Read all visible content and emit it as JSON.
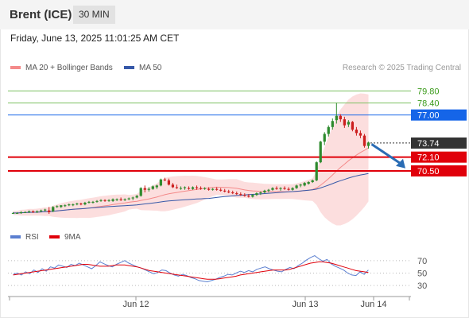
{
  "header": {
    "title": "Brent (ICE)",
    "timeframe": "30 MIN"
  },
  "datetime": "Friday, June 13, 2025 11:01:25 AM CET",
  "copyright": "Research © 2025 Trading Central",
  "colors": {
    "bb": "#f48a8a",
    "ma50": "#3658a8",
    "support": "#e0000a",
    "resistance_green": "#7cc061",
    "pivot": "#1565e8",
    "last": "#333333",
    "rsi": "#5b7fd0",
    "rsi_ma": "#e0000a",
    "candle_up": "#2e8b2e",
    "candle_down": "#cc1f1f",
    "arrow": "#2a6cb4"
  },
  "chart_data": [
    {
      "type": "candlestick",
      "legend": [
        "MA 20 + Bollinger Bands",
        "MA 50"
      ],
      "x_ticks": [
        "Jun 12",
        "Jun 13",
        "Jun 14"
      ],
      "ylim": [
        64.3,
        81.5
      ],
      "levels": [
        {
          "value": 79.8,
          "label": "79.80",
          "kind": "resistance"
        },
        {
          "value": 78.4,
          "label": "78.40",
          "kind": "resistance"
        },
        {
          "value": 77.0,
          "label": "77.00",
          "kind": "pivot"
        },
        {
          "value": 73.74,
          "label": "73.74",
          "kind": "last"
        },
        {
          "value": 72.1,
          "label": "72.10",
          "kind": "support"
        },
        {
          "value": 70.5,
          "label": "70.50",
          "kind": "support"
        }
      ],
      "ohlc": [
        [
          65.6,
          65.7,
          65.5,
          65.6
        ],
        [
          65.6,
          65.7,
          65.5,
          65.6
        ],
        [
          65.6,
          65.8,
          65.5,
          65.7
        ],
        [
          65.7,
          65.8,
          65.6,
          65.7
        ],
        [
          65.7,
          65.9,
          65.6,
          65.8
        ],
        [
          65.8,
          65.9,
          65.6,
          65.7
        ],
        [
          65.7,
          65.9,
          65.6,
          65.8
        ],
        [
          65.8,
          66.0,
          65.7,
          65.9
        ],
        [
          65.9,
          66.1,
          65.8,
          66.0
        ],
        [
          65.9,
          66.3,
          65.5,
          65.7
        ],
        [
          65.8,
          66.4,
          65.7,
          66.3
        ],
        [
          66.3,
          66.5,
          66.2,
          66.4
        ],
        [
          66.3,
          66.5,
          66.2,
          66.5
        ],
        [
          66.4,
          66.6,
          66.3,
          66.5
        ],
        [
          66.5,
          66.7,
          66.4,
          66.6
        ],
        [
          66.5,
          66.7,
          66.4,
          66.6
        ],
        [
          66.6,
          66.8,
          66.5,
          66.7
        ],
        [
          66.7,
          66.8,
          66.5,
          66.6
        ],
        [
          66.6,
          66.9,
          66.5,
          66.8
        ],
        [
          66.8,
          67.0,
          66.7,
          66.9
        ],
        [
          66.8,
          67.0,
          66.7,
          66.9
        ],
        [
          66.9,
          67.1,
          66.8,
          67.0
        ],
        [
          67.0,
          67.2,
          66.9,
          67.1
        ],
        [
          67.1,
          67.2,
          66.9,
          67.0
        ],
        [
          67.0,
          67.2,
          66.9,
          67.1
        ],
        [
          67.0,
          67.3,
          66.9,
          67.2
        ],
        [
          67.1,
          67.3,
          67.0,
          67.2
        ],
        [
          67.2,
          67.4,
          67.0,
          67.1
        ],
        [
          67.1,
          67.3,
          67.0,
          67.2
        ],
        [
          67.2,
          67.4,
          67.1,
          67.3
        ],
        [
          67.3,
          67.5,
          67.1,
          67.4
        ],
        [
          67.4,
          67.7,
          67.3,
          67.6
        ],
        [
          67.6,
          68.6,
          67.5,
          68.5
        ],
        [
          68.5,
          68.8,
          68.0,
          68.3
        ],
        [
          68.3,
          68.6,
          68.1,
          68.4
        ],
        [
          68.4,
          68.8,
          68.3,
          68.7
        ],
        [
          68.6,
          68.9,
          68.4,
          68.8
        ],
        [
          68.8,
          69.6,
          68.7,
          69.5
        ],
        [
          69.5,
          69.7,
          69.3,
          69.4
        ],
        [
          69.4,
          69.6,
          68.8,
          68.9
        ],
        [
          68.9,
          69.1,
          68.5,
          68.6
        ],
        [
          68.6,
          68.9,
          68.4,
          68.5
        ],
        [
          68.5,
          68.7,
          68.3,
          68.5
        ],
        [
          68.5,
          68.7,
          68.3,
          68.6
        ],
        [
          68.5,
          68.7,
          68.3,
          68.4
        ],
        [
          68.4,
          68.7,
          68.3,
          68.6
        ],
        [
          68.6,
          68.8,
          68.3,
          68.5
        ],
        [
          68.5,
          68.7,
          68.3,
          68.4
        ],
        [
          68.4,
          68.6,
          68.3,
          68.5
        ],
        [
          68.4,
          68.6,
          68.2,
          68.3
        ],
        [
          68.3,
          68.5,
          68.2,
          68.4
        ],
        [
          68.4,
          68.6,
          68.2,
          68.3
        ],
        [
          68.3,
          68.5,
          68.1,
          68.2
        ],
        [
          68.2,
          68.4,
          68.0,
          68.1
        ],
        [
          68.1,
          68.3,
          67.9,
          68.0
        ],
        [
          68.0,
          68.2,
          67.8,
          67.9
        ],
        [
          67.9,
          68.1,
          67.7,
          67.8
        ],
        [
          67.8,
          68.0,
          67.6,
          67.7
        ],
        [
          67.7,
          67.9,
          67.5,
          67.6
        ],
        [
          67.6,
          67.8,
          67.4,
          67.5
        ],
        [
          67.5,
          67.8,
          67.4,
          67.7
        ],
        [
          67.7,
          68.0,
          67.6,
          67.9
        ],
        [
          67.9,
          68.1,
          67.7,
          68.0
        ],
        [
          68.0,
          68.3,
          67.9,
          68.2
        ],
        [
          68.2,
          68.4,
          68.0,
          68.3
        ],
        [
          68.3,
          68.6,
          68.2,
          68.5
        ],
        [
          68.5,
          68.7,
          68.3,
          68.4
        ],
        [
          68.4,
          68.6,
          68.2,
          68.5
        ],
        [
          68.5,
          68.7,
          68.3,
          68.4
        ],
        [
          68.4,
          68.6,
          68.2,
          68.3
        ],
        [
          68.3,
          68.6,
          68.2,
          68.5
        ],
        [
          68.5,
          68.9,
          68.4,
          68.8
        ],
        [
          68.8,
          69.0,
          68.6,
          68.9
        ],
        [
          68.8,
          69.2,
          68.7,
          69.1
        ],
        [
          69.0,
          69.3,
          68.9,
          69.2
        ],
        [
          69.2,
          69.5,
          69.1,
          69.4
        ],
        [
          69.4,
          71.6,
          69.3,
          71.5
        ],
        [
          71.5,
          74.0,
          71.4,
          73.9
        ],
        [
          73.9,
          75.0,
          73.5,
          74.8
        ],
        [
          74.8,
          75.8,
          74.5,
          75.6
        ],
        [
          75.6,
          76.6,
          75.3,
          76.3
        ],
        [
          76.4,
          78.4,
          76.0,
          76.9
        ],
        [
          76.9,
          77.1,
          76.2,
          76.5
        ],
        [
          76.5,
          76.8,
          75.5,
          75.8
        ],
        [
          75.9,
          76.4,
          75.6,
          76.2
        ],
        [
          76.2,
          76.3,
          75.1,
          75.3
        ],
        [
          75.3,
          75.6,
          74.6,
          74.9
        ],
        [
          74.9,
          75.2,
          74.3,
          74.6
        ],
        [
          74.6,
          74.8,
          73.2,
          73.4
        ],
        [
          73.4,
          73.9,
          73.1,
          73.8
        ]
      ]
    },
    {
      "type": "line",
      "legend": [
        "RSI",
        "9MA"
      ],
      "y_ticks": [
        70,
        50,
        30
      ],
      "ylim": [
        20,
        80
      ],
      "series": [
        {
          "name": "RSI",
          "values": [
            48,
            50,
            47,
            52,
            49,
            55,
            51,
            57,
            53,
            60,
            58,
            63,
            61,
            59,
            64,
            62,
            66,
            63,
            60,
            57,
            62,
            68,
            65,
            62,
            60,
            64,
            67,
            70,
            66,
            63,
            60,
            58,
            55,
            52,
            49,
            51,
            55,
            54,
            50,
            47,
            45,
            48,
            46,
            43,
            41,
            38,
            37,
            36,
            38,
            40,
            43,
            45,
            48,
            47,
            50,
            53,
            51,
            54,
            52,
            56,
            58,
            60,
            57,
            55,
            53,
            52,
            56,
            59,
            57,
            62,
            66,
            71,
            75,
            78,
            73,
            69,
            72,
            65,
            61,
            58,
            55,
            50,
            47,
            46,
            52,
            48,
            55
          ]
        },
        {
          "name": "9MA",
          "values": [
            47,
            48,
            49,
            50,
            51,
            52,
            53,
            54,
            55,
            56,
            57,
            58,
            59,
            60,
            61,
            62,
            63,
            64,
            64,
            63,
            62,
            61,
            61,
            61,
            62,
            63,
            63,
            63,
            62,
            61,
            60,
            58,
            56,
            54,
            53,
            52,
            51,
            50,
            49,
            48,
            47,
            46,
            45,
            44,
            43,
            42,
            41,
            40,
            40,
            40,
            41,
            42,
            43,
            44,
            45,
            47,
            48,
            49,
            50,
            51,
            52,
            53,
            54,
            55,
            55,
            55,
            55,
            56,
            58,
            60,
            62,
            64,
            66,
            67,
            68,
            68,
            67,
            66,
            64,
            62,
            60,
            58,
            56,
            54,
            53,
            52,
            51
          ]
        }
      ]
    }
  ]
}
